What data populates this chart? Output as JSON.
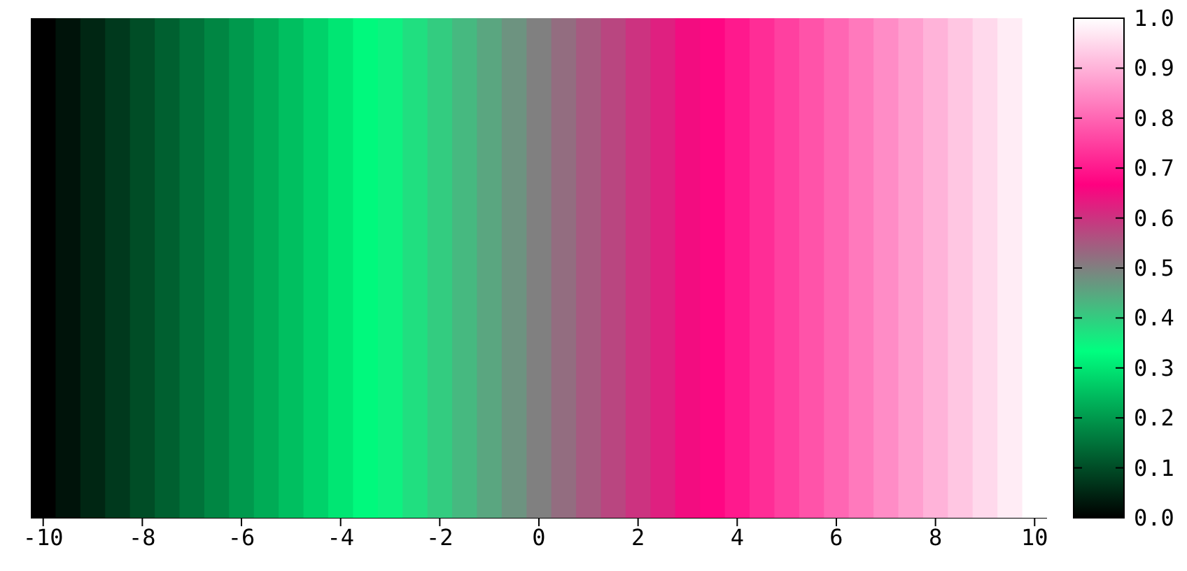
{
  "chart_data": {
    "type": "heatmap",
    "categories": [
      "-10",
      null,
      null,
      null,
      "-8",
      null,
      null,
      null,
      "-6",
      null,
      null,
      null,
      "-4",
      null,
      null,
      null,
      "-2",
      null,
      null,
      null,
      "0",
      null,
      null,
      null,
      "2",
      null,
      null,
      null,
      "4",
      null,
      null,
      null,
      "6",
      null,
      null,
      null,
      "8",
      null,
      null,
      null,
      "10"
    ],
    "y_categories": [
      null
    ],
    "cells": [
      [
        0,
        0.025,
        0.05,
        0.075,
        0.1,
        0.125,
        0.15,
        0.175,
        0.2,
        0.225,
        0.25,
        0.275,
        0.3,
        0.325,
        0.35,
        0.375,
        0.4,
        0.425,
        0.45,
        0.475,
        0.5,
        0.525,
        0.55,
        0.575,
        0.6,
        0.625,
        0.65,
        0.675,
        0.7,
        0.725,
        0.75,
        0.775,
        0.8,
        0.825,
        0.85,
        0.875,
        0.9,
        0.925,
        0.95,
        0.975,
        1
      ]
    ],
    "clim": [
      0,
      1
    ],
    "cticks": [
      {
        "value": 0,
        "label": "0.0"
      },
      {
        "value": 0.1,
        "label": "0.1"
      },
      {
        "value": 0.2,
        "label": "0.2"
      },
      {
        "value": 0.3,
        "label": "0.3"
      },
      {
        "value": 0.4,
        "label": "0.4"
      },
      {
        "value": 0.5,
        "label": "0.5"
      },
      {
        "value": 0.6,
        "label": "0.6"
      },
      {
        "value": 0.7,
        "label": "0.7"
      },
      {
        "value": 0.8,
        "label": "0.8"
      },
      {
        "value": 0.9,
        "label": "0.9"
      },
      {
        "value": 1,
        "label": "1.0"
      }
    ],
    "tick_labels": "x"
  }
}
